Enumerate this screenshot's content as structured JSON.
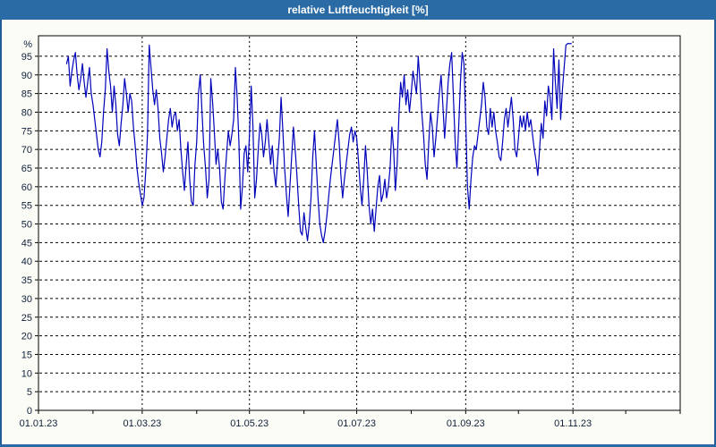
{
  "window": {
    "title": "relative Luftfeuchtigkeit [%]"
  },
  "colors": {
    "titlebar_bg": "#2a6ba6",
    "window_border": "#1f5d96",
    "page_bg": "#fbfcf5",
    "plot_bg": "#ffffff",
    "frame": "#000000",
    "gridline": "#000000",
    "tick_label": "#10203c",
    "series_line": "#0000bb"
  },
  "chart_data": {
    "type": "line",
    "title": "relative Luftfeuchtigkeit [%]",
    "ylabel": "%",
    "grid": "dashed",
    "legend": "none",
    "x_domain_days": [
      0,
      365
    ],
    "y_domain": [
      0,
      100.5
    ],
    "y_tick_step": 5,
    "y_tick_values": [
      0,
      5,
      10,
      15,
      20,
      25,
      30,
      35,
      40,
      45,
      50,
      55,
      60,
      65,
      70,
      75,
      80,
      85,
      90,
      95
    ],
    "x_ticks": [
      {
        "day": 0,
        "label": "01.01.23"
      },
      {
        "day": 59,
        "label": "01.03.23"
      },
      {
        "day": 120,
        "label": "01.05.23"
      },
      {
        "day": 181,
        "label": "01.07.23"
      },
      {
        "day": 243,
        "label": "01.09.23"
      },
      {
        "day": 304,
        "label": "01.11.23"
      }
    ],
    "x_gridline_days": [
      59,
      120,
      181,
      243,
      304
    ],
    "month_tick_days": [
      0,
      31,
      59,
      90,
      120,
      151,
      181,
      212,
      243,
      273,
      304,
      334,
      365
    ],
    "series": [
      {
        "name": "relative Luftfeuchtigkeit",
        "unit": "%",
        "color": "#0000bb",
        "start_day": 16,
        "values": [
          93,
          95,
          87,
          91,
          94,
          96,
          90,
          86,
          89,
          93,
          88,
          84,
          88,
          92,
          85,
          82,
          78,
          74,
          70,
          68,
          72,
          80,
          86,
          97,
          91,
          87,
          80,
          87,
          82,
          74,
          71,
          77,
          82,
          89,
          85,
          80,
          85,
          83,
          76,
          71,
          65,
          61,
          58,
          55,
          57,
          64,
          74,
          98,
          92,
          86,
          82,
          86,
          81,
          73,
          69,
          64,
          68,
          73,
          78,
          81,
          76,
          79,
          80,
          75,
          78,
          70,
          64,
          59,
          66,
          72,
          62,
          56,
          55,
          66,
          72,
          85,
          90,
          80,
          71,
          65,
          57,
          62,
          89,
          83,
          75,
          66,
          70,
          65,
          56,
          54,
          62,
          69,
          75,
          71,
          74,
          78,
          92,
          84,
          72,
          54,
          60,
          69,
          71,
          64,
          74,
          87,
          76,
          57,
          62,
          70,
          77,
          74,
          68,
          72,
          78,
          72,
          66,
          71,
          64,
          60,
          67,
          73,
          84,
          75,
          65,
          58,
          52,
          60,
          68,
          76,
          70,
          63,
          55,
          48,
          47,
          53,
          49,
          45.5,
          50,
          57,
          68,
          75,
          66,
          57,
          50,
          47,
          45,
          48,
          52,
          57,
          62,
          66,
          70,
          74,
          78,
          72,
          63,
          57,
          62,
          66,
          70,
          74,
          76,
          72,
          75,
          73,
          67,
          60,
          55,
          62,
          71,
          64,
          55,
          50,
          54,
          48,
          54,
          60,
          63,
          56,
          58,
          62,
          57,
          60,
          65,
          76,
          70,
          59,
          66,
          79,
          88,
          84,
          90,
          82,
          86,
          80,
          85,
          91,
          88,
          85,
          95,
          88,
          80,
          74,
          66,
          62,
          72,
          80,
          76,
          68,
          73,
          79,
          85,
          90,
          82,
          73,
          80,
          88,
          93,
          96,
          84,
          72,
          65,
          76,
          88,
          96,
          93,
          78,
          60,
          54,
          62,
          68,
          71,
          70,
          74,
          78,
          82,
          88,
          84,
          76,
          74,
          81,
          76,
          80,
          75,
          72,
          68,
          67,
          72,
          78,
          81,
          76,
          80,
          84,
          78,
          70,
          68,
          73,
          79,
          76,
          79,
          75,
          80,
          76,
          78,
          74,
          70,
          67,
          63,
          70,
          77,
          73,
          83,
          79,
          87,
          84,
          78,
          97,
          88,
          81,
          94,
          78,
          86,
          92,
          98,
          98.4,
          98.4,
          98.4
        ]
      }
    ]
  }
}
